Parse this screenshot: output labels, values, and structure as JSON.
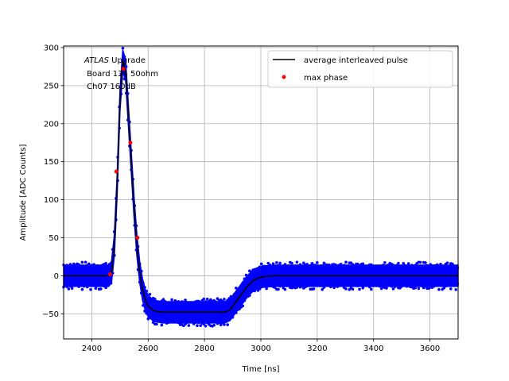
{
  "chart_data": {
    "type": "line",
    "title": "",
    "xlabel": "Time [ns]",
    "ylabel": "Amplitude [ADC Counts]",
    "xlim": [
      2300,
      3700
    ],
    "ylim": [
      -83,
      302
    ],
    "xticks": [
      2400,
      2600,
      2800,
      3000,
      3200,
      3400,
      3600
    ],
    "yticks": [
      -50,
      0,
      50,
      100,
      150,
      200,
      250,
      300
    ],
    "grid": true,
    "legend_position": "top-right",
    "annotation": {
      "italic": "ATLAS",
      "line1_rest": " Upgrade",
      "line2": " Board 134 50ohm",
      "line3": " Ch07 160dB"
    },
    "series": [
      {
        "name": "average interleaved pulse",
        "color": "#000000",
        "style": "line",
        "x": [
          2300,
          2460,
          2470,
          2480,
          2490,
          2500,
          2510,
          2520,
          2530,
          2540,
          2550,
          2560,
          2570,
          2580,
          2590,
          2600,
          2620,
          2650,
          2700,
          2800,
          2870,
          2890,
          2910,
          2930,
          2950,
          2970,
          2990,
          3010,
          3050,
          3100,
          3700
        ],
        "y": [
          0,
          0,
          5,
          40,
          120,
          230,
          283,
          270,
          210,
          150,
          90,
          40,
          5,
          -18,
          -32,
          -40,
          -46,
          -48,
          -48,
          -48,
          -48,
          -45,
          -35,
          -25,
          -15,
          -7,
          -3,
          -1,
          0,
          0,
          0
        ]
      },
      {
        "name": "max phase",
        "color": "#ff0000",
        "style": "markers",
        "x": [
          2465,
          2487,
          2512,
          2537,
          2562
        ],
        "y": [
          2,
          137,
          272,
          175,
          50
        ]
      },
      {
        "name": "",
        "color": "#0000ff",
        "style": "band",
        "noise_half_width": 14
      }
    ]
  }
}
